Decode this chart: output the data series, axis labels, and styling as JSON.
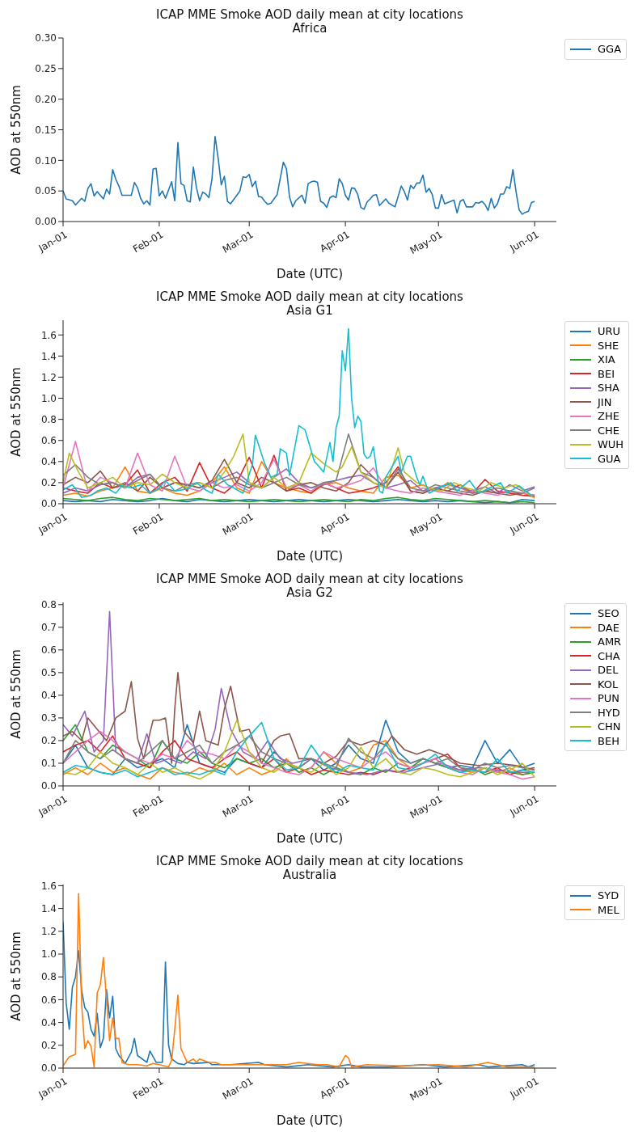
{
  "chart_data": [
    {
      "type": "line",
      "title": "ICAP MME Smoke AOD daily mean at city locations",
      "subtitle": "Africa",
      "xlabel": "Date (UTC)",
      "ylabel": "AOD at 550nm",
      "legend": "top right",
      "xlim": [
        "--01-01",
        "--06-08"
      ],
      "xticks": [
        {
          "value": "--01-01",
          "label": "Jan-01"
        },
        {
          "value": "--02-01",
          "label": "Feb-01"
        },
        {
          "value": "--03-01",
          "label": "Mar-01"
        },
        {
          "value": "--04-01",
          "label": "Apr-01"
        },
        {
          "value": "--05-01",
          "label": "May-01"
        },
        {
          "value": "--06-01",
          "label": "Jun-01"
        }
      ],
      "ylim": [
        0,
        0.3
      ],
      "yticks": [
        {
          "value": 0,
          "label": "0.00"
        },
        {
          "value": 0.05,
          "label": "0.05"
        },
        {
          "value": 0.1,
          "label": "0.10"
        },
        {
          "value": 0.15,
          "label": "0.15"
        },
        {
          "value": 0.2,
          "label": "0.20"
        },
        {
          "value": 0.25,
          "label": "0.25"
        },
        {
          "value": 0.3,
          "label": "0.30"
        }
      ],
      "series": [
        {
          "name": "GGA",
          "color": "#1f77b4",
          "x": [
            "--01-01",
            "--01-02",
            "--01-04",
            "--01-05",
            "--01-07",
            "--01-08",
            "--01-09",
            "--01-10",
            "--01-11",
            "--01-12",
            "--01-14",
            "--01-15",
            "--01-16",
            "--01-17",
            "--01-18",
            "--01-19",
            "--01-20",
            "--01-23",
            "--01-24",
            "--01-25",
            "--01-26",
            "--01-27",
            "--01-28",
            "--01-29",
            "--01-30",
            "--01-31",
            "--02-01",
            "--02-02",
            "--02-03",
            "--02-05",
            "--02-06",
            "--02-07",
            "--02-08",
            "--02-09",
            "--02-10",
            "--02-11",
            "--02-12",
            "--02-13",
            "--02-14",
            "--02-15",
            "--02-16",
            "--02-17",
            "--02-18",
            "--02-19",
            "--02-20",
            "--02-21",
            "--02-22",
            "--02-23",
            "--02-24",
            "--02-27",
            "--02-28",
            "--02-29",
            "--03-01",
            "--03-02",
            "--03-03",
            "--03-04",
            "--03-05",
            "--03-06",
            "--03-07",
            "--03-08",
            "--03-10",
            "--03-12",
            "--03-13",
            "--03-14",
            "--03-15",
            "--03-16",
            "--03-18",
            "--03-19",
            "--03-20",
            "--03-21",
            "--03-22",
            "--03-23",
            "--03-24",
            "--03-25",
            "--03-26",
            "--03-27",
            "--03-28",
            "--03-29",
            "--03-30",
            "--03-31",
            "--04-01",
            "--04-02",
            "--04-03",
            "--04-04",
            "--04-05",
            "--04-06",
            "--04-07",
            "--04-08",
            "--04-09",
            "--04-10",
            "--04-11",
            "--04-12",
            "--04-14",
            "--04-15",
            "--04-17",
            "--04-19",
            "--04-20",
            "--04-21",
            "--04-22",
            "--04-23",
            "--04-24",
            "--04-25",
            "--04-26",
            "--04-27",
            "--04-28",
            "--04-29",
            "--04-30",
            "--05-01",
            "--05-02",
            "--05-03",
            "--05-06",
            "--05-07",
            "--05-08",
            "--05-09",
            "--05-10",
            "--05-12",
            "--05-13",
            "--05-14",
            "--05-15",
            "--05-16",
            "--05-17",
            "--05-18",
            "--05-19",
            "--05-20",
            "--05-21",
            "--05-22",
            "--05-23",
            "--05-24",
            "--05-25",
            "--05-26",
            "--05-27",
            "--05-28",
            "--05-29",
            "--05-30",
            "--05-31",
            "--06-01"
          ],
          "values": [
            0.05,
            0.037,
            0.034,
            0.027,
            0.038,
            0.033,
            0.054,
            0.062,
            0.042,
            0.049,
            0.037,
            0.053,
            0.045,
            0.085,
            0.069,
            0.058,
            0.043,
            0.043,
            0.064,
            0.055,
            0.038,
            0.029,
            0.034,
            0.027,
            0.086,
            0.087,
            0.042,
            0.05,
            0.038,
            0.065,
            0.034,
            0.129,
            0.062,
            0.059,
            0.034,
            0.032,
            0.089,
            0.055,
            0.034,
            0.048,
            0.045,
            0.039,
            0.07,
            0.139,
            0.103,
            0.06,
            0.074,
            0.033,
            0.029,
            0.05,
            0.073,
            0.072,
            0.077,
            0.057,
            0.066,
            0.041,
            0.04,
            0.033,
            0.028,
            0.03,
            0.044,
            0.097,
            0.086,
            0.04,
            0.024,
            0.034,
            0.043,
            0.03,
            0.062,
            0.065,
            0.066,
            0.064,
            0.033,
            0.03,
            0.023,
            0.039,
            0.042,
            0.039,
            0.07,
            0.062,
            0.043,
            0.035,
            0.055,
            0.054,
            0.044,
            0.023,
            0.02,
            0.032,
            0.037,
            0.043,
            0.044,
            0.026,
            0.037,
            0.03,
            0.024,
            0.058,
            0.049,
            0.035,
            0.059,
            0.054,
            0.063,
            0.063,
            0.076,
            0.048,
            0.054,
            0.044,
            0.022,
            0.022,
            0.044,
            0.029,
            0.035,
            0.014,
            0.033,
            0.036,
            0.024,
            0.024,
            0.031,
            0.03,
            0.033,
            0.028,
            0.018,
            0.038,
            0.022,
            0.029,
            0.045,
            0.045,
            0.057,
            0.054,
            0.085,
            0.049,
            0.019,
            0.012,
            0.015,
            0.017,
            0.031,
            0.033
          ]
        }
      ]
    },
    {
      "type": "line",
      "title": "ICAP MME Smoke AOD daily mean at city locations",
      "subtitle": "Asia G1",
      "xlabel": "Date (UTC)",
      "ylabel": "AOD at 550nm",
      "legend": "top right",
      "xlim": [
        "--01-01",
        "--06-08"
      ],
      "xticks": [
        {
          "value": "--01-01",
          "label": "Jan-01"
        },
        {
          "value": "--02-01",
          "label": "Feb-01"
        },
        {
          "value": "--03-01",
          "label": "Mar-01"
        },
        {
          "value": "--04-01",
          "label": "Apr-01"
        },
        {
          "value": "--05-01",
          "label": "May-01"
        },
        {
          "value": "--06-01",
          "label": "Jun-01"
        }
      ],
      "ylim": [
        0,
        1.74
      ],
      "yticks": [
        {
          "value": 0,
          "label": "0.0"
        },
        {
          "value": 0.2,
          "label": "0.2"
        },
        {
          "value": 0.4,
          "label": "0.4"
        },
        {
          "value": 0.6,
          "label": "0.6"
        },
        {
          "value": 0.8,
          "label": "0.8"
        },
        {
          "value": 1,
          "label": "1.0"
        },
        {
          "value": 1.2,
          "label": "1.2"
        },
        {
          "value": 1.4,
          "label": "1.4"
        },
        {
          "value": 1.6,
          "label": "1.6"
        }
      ],
      "x": [
        "--01-01",
        "--01-05",
        "--01-09",
        "--01-13",
        "--01-17",
        "--01-21",
        "--01-25",
        "--01-29",
        "--02-02",
        "--02-06",
        "--02-10",
        "--02-14",
        "--02-18",
        "--02-22",
        "--02-26",
        "--03-01",
        "--03-05",
        "--03-09",
        "--03-13",
        "--03-17",
        "--03-21",
        "--03-25",
        "--03-29",
        "--04-02",
        "--04-06",
        "--04-10",
        "--04-14",
        "--04-18",
        "--04-22",
        "--04-26",
        "--04-30",
        "--05-04",
        "--05-08",
        "--05-12",
        "--05-16",
        "--05-20",
        "--05-24",
        "--05-28",
        "--06-01"
      ],
      "series": [
        {
          "name": "URU",
          "color": "#1f77b4",
          "values": [
            0.03,
            0.02,
            0.03,
            0.02,
            0.04,
            0.03,
            0.02,
            0.03,
            0.05,
            0.03,
            0.02,
            0.04,
            0.03,
            0.02,
            0.03,
            0.04,
            0.03,
            0.02,
            0.03,
            0.04,
            0.03,
            0.02,
            0.03,
            0.04,
            0.03,
            0.02,
            0.03,
            0.04,
            0.03,
            0.02,
            0.03,
            0.02,
            0.03,
            0.02,
            0.01,
            0.02,
            0.01,
            0.04,
            0.03
          ]
        },
        {
          "name": "SHE",
          "color": "#ff7f0e",
          "values": [
            0.08,
            0.1,
            0.07,
            0.12,
            0.15,
            0.35,
            0.12,
            0.1,
            0.15,
            0.1,
            0.08,
            0.12,
            0.2,
            0.35,
            0.15,
            0.1,
            0.4,
            0.2,
            0.15,
            0.12,
            0.1,
            0.18,
            0.2,
            0.15,
            0.12,
            0.1,
            0.25,
            0.27,
            0.15,
            0.18,
            0.12,
            0.2,
            0.15,
            0.1,
            0.12,
            0.1,
            0.12,
            0.08,
            0.07
          ]
        },
        {
          "name": "XIA",
          "color": "#2ca02c",
          "values": [
            0.05,
            0.04,
            0.03,
            0.05,
            0.06,
            0.04,
            0.03,
            0.05,
            0.04,
            0.03,
            0.04,
            0.05,
            0.03,
            0.04,
            0.03,
            0.02,
            0.03,
            0.04,
            0.03,
            0.02,
            0.03,
            0.04,
            0.03,
            0.02,
            0.04,
            0.03,
            0.05,
            0.06,
            0.04,
            0.03,
            0.05,
            0.04,
            0.03,
            0.02,
            0.03,
            0.02,
            0.01,
            0.02,
            0.01
          ]
        },
        {
          "name": "BEI",
          "color": "#d62728",
          "values": [
            0.15,
            0.12,
            0.1,
            0.2,
            0.15,
            0.18,
            0.32,
            0.1,
            0.2,
            0.25,
            0.12,
            0.39,
            0.15,
            0.1,
            0.2,
            0.44,
            0.15,
            0.46,
            0.12,
            0.15,
            0.1,
            0.2,
            0.15,
            0.1,
            0.12,
            0.15,
            0.2,
            0.35,
            0.12,
            0.1,
            0.15,
            0.12,
            0.18,
            0.1,
            0.23,
            0.12,
            0.1,
            0.08,
            0.07
          ]
        },
        {
          "name": "SHA",
          "color": "#9467bd",
          "values": [
            0.1,
            0.15,
            0.12,
            0.18,
            0.2,
            0.15,
            0.25,
            0.28,
            0.15,
            0.2,
            0.18,
            0.15,
            0.2,
            0.25,
            0.3,
            0.2,
            0.15,
            0.25,
            0.33,
            0.2,
            0.15,
            0.18,
            0.22,
            0.25,
            0.27,
            0.2,
            0.15,
            0.18,
            0.22,
            0.12,
            0.15,
            0.18,
            0.15,
            0.12,
            0.16,
            0.1,
            0.18,
            0.12,
            0.16
          ]
        },
        {
          "name": "JIN",
          "color": "#8c564b",
          "values": [
            0.18,
            0.25,
            0.2,
            0.31,
            0.15,
            0.2,
            0.12,
            0.25,
            0.15,
            0.2,
            0.18,
            0.15,
            0.22,
            0.42,
            0.2,
            0.15,
            0.25,
            0.2,
            0.12,
            0.18,
            0.2,
            0.15,
            0.12,
            0.2,
            0.37,
            0.25,
            0.15,
            0.3,
            0.12,
            0.1,
            0.15,
            0.12,
            0.1,
            0.08,
            0.12,
            0.1,
            0.08,
            0.1,
            0.08
          ]
        },
        {
          "name": "ZHE",
          "color": "#e377c2",
          "values": [
            0.15,
            0.59,
            0.12,
            0.25,
            0.2,
            0.15,
            0.48,
            0.18,
            0.12,
            0.45,
            0.15,
            0.12,
            0.2,
            0.15,
            0.18,
            0.12,
            0.2,
            0.42,
            0.15,
            0.18,
            0.12,
            0.2,
            0.15,
            0.18,
            0.22,
            0.34,
            0.15,
            0.12,
            0.1,
            0.15,
            0.12,
            0.1,
            0.08,
            0.12,
            0.1,
            0.08,
            0.12,
            0.1,
            0.08
          ]
        },
        {
          "name": "CHE",
          "color": "#7f7f7f",
          "values": [
            0.27,
            0.37,
            0.25,
            0.18,
            0.2,
            0.15,
            0.22,
            0.28,
            0.15,
            0.12,
            0.18,
            0.2,
            0.15,
            0.22,
            0.25,
            0.18,
            0.15,
            0.2,
            0.25,
            0.18,
            0.15,
            0.2,
            0.22,
            0.66,
            0.3,
            0.25,
            0.15,
            0.33,
            0.15,
            0.12,
            0.18,
            0.15,
            0.12,
            0.1,
            0.12,
            0.15,
            0.12,
            0.1,
            0.15
          ]
        },
        {
          "name": "WUH",
          "color": "#bcbd22",
          "x": [
            "--01-01",
            "--01-03",
            "--01-06",
            "--01-09",
            "--01-13",
            "--01-17",
            "--01-21",
            "--01-25",
            "--01-29",
            "--02-02",
            "--02-06",
            "--02-10",
            "--02-14",
            "--02-18",
            "--02-22",
            "--02-25",
            "--02-28",
            "--03-01",
            "--03-05",
            "--03-09",
            "--03-13",
            "--03-17",
            "--03-21",
            "--03-25",
            "--03-29",
            "--03-31",
            "--04-03",
            "--04-06",
            "--04-10",
            "--04-14",
            "--04-18",
            "--04-20",
            "--04-24",
            "--04-28",
            "--05-02",
            "--05-06",
            "--05-10",
            "--05-14",
            "--05-18",
            "--05-22",
            "--05-26",
            "--06-01"
          ],
          "values": [
            0.2,
            0.48,
            0.3,
            0.15,
            0.2,
            0.25,
            0.15,
            0.2,
            0.18,
            0.28,
            0.2,
            0.15,
            0.2,
            0.15,
            0.3,
            0.45,
            0.66,
            0.2,
            0.15,
            0.25,
            0.15,
            0.2,
            0.48,
            0.38,
            0.3,
            0.35,
            0.54,
            0.3,
            0.2,
            0.15,
            0.53,
            0.3,
            0.2,
            0.15,
            0.12,
            0.2,
            0.15,
            0.12,
            0.2,
            0.15,
            0.18,
            0.05
          ]
        },
        {
          "name": "GUA",
          "color": "#17becf",
          "x": [
            "--01-01",
            "--01-04",
            "--01-07",
            "--01-10",
            "--01-12",
            "--01-15",
            "--01-18",
            "--01-20",
            "--01-23",
            "--01-26",
            "--01-29",
            "--02-01",
            "--02-03",
            "--02-06",
            "--02-10",
            "--02-13",
            "--02-16",
            "--02-18",
            "--02-20",
            "--02-23",
            "--02-25",
            "--02-28",
            "--03-02",
            "--03-03",
            "--03-06",
            "--03-08",
            "--03-10",
            "--03-11",
            "--03-13",
            "--03-14",
            "--03-17",
            "--03-19",
            "--03-20",
            "--03-22",
            "--03-23",
            "--03-25",
            "--03-27",
            "--03-28",
            "--03-29",
            "--03-30",
            "--03-31",
            "--04-01",
            "--04-02",
            "--04-03",
            "--04-04",
            "--04-05",
            "--04-06",
            "--04-07",
            "--04-08",
            "--04-09",
            "--04-10",
            "--04-12",
            "--04-13",
            "--04-14",
            "--04-18",
            "--04-19",
            "--04-21",
            "--04-22",
            "--04-24",
            "--04-25",
            "--04-26",
            "--04-28",
            "--05-01",
            "--05-05",
            "--05-07",
            "--05-11",
            "--05-14",
            "--05-21",
            "--05-23",
            "--05-27",
            "--05-31"
          ],
          "values": [
            0.13,
            0.18,
            0.06,
            0.08,
            0.12,
            0.15,
            0.1,
            0.17,
            0.15,
            0.18,
            0.1,
            0.15,
            0.22,
            0.12,
            0.14,
            0.2,
            0.13,
            0.1,
            0.28,
            0.18,
            0.15,
            0.1,
            0.37,
            0.65,
            0.38,
            0.25,
            0.28,
            0.52,
            0.48,
            0.27,
            0.74,
            0.7,
            0.6,
            0.4,
            0.37,
            0.3,
            0.58,
            0.4,
            0.72,
            0.83,
            1.45,
            1.26,
            1.66,
            1.0,
            0.72,
            0.83,
            0.78,
            0.47,
            0.43,
            0.45,
            0.54,
            0.12,
            0.1,
            0.25,
            0.45,
            0.3,
            0.45,
            0.45,
            0.25,
            0.18,
            0.26,
            0.1,
            0.15,
            0.2,
            0.12,
            0.22,
            0.1,
            0.2,
            0.1,
            0.17,
            0.08
          ]
        }
      ]
    },
    {
      "type": "line",
      "title": "ICAP MME Smoke AOD daily mean at city locations",
      "subtitle": "Asia G2",
      "xlabel": "Date (UTC)",
      "ylabel": "AOD at 550nm",
      "legend": "top right",
      "xlim": [
        "--01-01",
        "--06-08"
      ],
      "xticks": [
        {
          "value": "--01-01",
          "label": "Jan-01"
        },
        {
          "value": "--02-01",
          "label": "Feb-01"
        },
        {
          "value": "--03-01",
          "label": "Mar-01"
        },
        {
          "value": "--04-01",
          "label": "Apr-01"
        },
        {
          "value": "--05-01",
          "label": "May-01"
        },
        {
          "value": "--06-01",
          "label": "Jun-01"
        }
      ],
      "ylim": [
        0,
        0.81
      ],
      "yticks": [
        {
          "value": 0,
          "label": "0.0"
        },
        {
          "value": 0.1,
          "label": "0.1"
        },
        {
          "value": 0.2,
          "label": "0.2"
        },
        {
          "value": 0.3,
          "label": "0.3"
        },
        {
          "value": 0.4,
          "label": "0.4"
        },
        {
          "value": 0.5,
          "label": "0.5"
        },
        {
          "value": 0.6,
          "label": "0.6"
        },
        {
          "value": 0.7,
          "label": "0.7"
        },
        {
          "value": 0.8,
          "label": "0.8"
        }
      ],
      "x": [
        "--01-01",
        "--01-05",
        "--01-09",
        "--01-13",
        "--01-17",
        "--01-21",
        "--01-25",
        "--01-29",
        "--02-02",
        "--02-06",
        "--02-10",
        "--02-14",
        "--02-18",
        "--02-22",
        "--02-26",
        "--03-01",
        "--03-05",
        "--03-09",
        "--03-13",
        "--03-17",
        "--03-21",
        "--03-25",
        "--03-29",
        "--04-02",
        "--04-06",
        "--04-10",
        "--04-14",
        "--04-18",
        "--04-22",
        "--04-26",
        "--04-30",
        "--05-04",
        "--05-08",
        "--05-12",
        "--05-16",
        "--05-20",
        "--05-24",
        "--05-28",
        "--06-01"
      ],
      "series": [
        {
          "name": "SEO",
          "color": "#1f77b4",
          "values": [
            0.1,
            0.18,
            0.08,
            0.06,
            0.05,
            0.12,
            0.08,
            0.1,
            0.12,
            0.08,
            0.27,
            0.1,
            0.08,
            0.06,
            0.12,
            0.1,
            0.08,
            0.15,
            0.1,
            0.08,
            0.12,
            0.07,
            0.1,
            0.18,
            0.12,
            0.1,
            0.29,
            0.15,
            0.1,
            0.12,
            0.1,
            0.08,
            0.09,
            0.08,
            0.2,
            0.1,
            0.16,
            0.08,
            0.1
          ]
        },
        {
          "name": "DAE",
          "color": "#ff7f0e",
          "values": [
            0.05,
            0.08,
            0.05,
            0.1,
            0.06,
            0.08,
            0.05,
            0.03,
            0.08,
            0.06,
            0.05,
            0.08,
            0.06,
            0.1,
            0.05,
            0.08,
            0.05,
            0.07,
            0.12,
            0.06,
            0.08,
            0.15,
            0.1,
            0.06,
            0.08,
            0.18,
            0.2,
            0.12,
            0.08,
            0.1,
            0.12,
            0.08,
            0.07,
            0.06,
            0.08,
            0.06,
            0.08,
            0.05,
            0.06
          ]
        },
        {
          "name": "AMR",
          "color": "#2ca02c",
          "values": [
            0.2,
            0.27,
            0.15,
            0.12,
            0.18,
            0.15,
            0.12,
            0.08,
            0.2,
            0.12,
            0.1,
            0.15,
            0.1,
            0.08,
            0.12,
            0.1,
            0.12,
            0.08,
            0.1,
            0.06,
            0.08,
            0.05,
            0.08,
            0.06,
            0.05,
            0.08,
            0.06,
            0.1,
            0.08,
            0.12,
            0.1,
            0.08,
            0.06,
            0.08,
            0.05,
            0.07,
            0.06,
            0.05,
            0.06
          ]
        },
        {
          "name": "CHA",
          "color": "#d62728",
          "values": [
            0.15,
            0.18,
            0.2,
            0.15,
            0.22,
            0.12,
            0.1,
            0.08,
            0.15,
            0.2,
            0.12,
            0.1,
            0.08,
            0.12,
            0.15,
            0.1,
            0.08,
            0.12,
            0.06,
            0.08,
            0.05,
            0.07,
            0.06,
            0.05,
            0.06,
            0.05,
            0.07,
            0.06,
            0.08,
            0.1,
            0.12,
            0.14,
            0.08,
            0.07,
            0.06,
            0.08,
            0.05,
            0.07,
            0.08
          ]
        },
        {
          "name": "DEL",
          "color": "#9467bd",
          "x": [
            "--01-01",
            "--01-04",
            "--01-08",
            "--01-11",
            "--01-14",
            "--01-16",
            "--01-18",
            "--01-21",
            "--01-25",
            "--01-28",
            "--01-31",
            "--02-04",
            "--02-08",
            "--02-12",
            "--02-16",
            "--02-19",
            "--02-21",
            "--02-24",
            "--02-28",
            "--03-03",
            "--03-07",
            "--03-11",
            "--03-15",
            "--03-21",
            "--03-27",
            "--04-02",
            "--04-08",
            "--04-14",
            "--04-20",
            "--04-26",
            "--05-02",
            "--05-08",
            "--05-14",
            "--05-20",
            "--05-26",
            "--06-01"
          ],
          "values": [
            0.27,
            0.22,
            0.33,
            0.15,
            0.2,
            0.77,
            0.15,
            0.12,
            0.1,
            0.23,
            0.1,
            0.12,
            0.1,
            0.15,
            0.12,
            0.25,
            0.43,
            0.25,
            0.15,
            0.12,
            0.2,
            0.12,
            0.1,
            0.12,
            0.08,
            0.06,
            0.05,
            0.07,
            0.06,
            0.08,
            0.1,
            0.07,
            0.08,
            0.07,
            0.06,
            0.06
          ]
        },
        {
          "name": "KOL",
          "color": "#8c564b",
          "x": [
            "--01-01",
            "--01-04",
            "--01-07",
            "--01-09",
            "--01-12",
            "--01-15",
            "--01-18",
            "--01-21",
            "--01-23",
            "--01-25",
            "--01-27",
            "--01-30",
            "--02-01",
            "--02-03",
            "--02-05",
            "--02-06",
            "--02-07",
            "--02-09",
            "--02-12",
            "--02-14",
            "--02-16",
            "--02-20",
            "--02-22",
            "--02-24",
            "--02-27",
            "--03-01",
            "--03-05",
            "--03-09",
            "--03-11",
            "--03-14",
            "--03-17",
            "--03-21",
            "--03-25",
            "--03-29",
            "--04-02",
            "--04-06",
            "--04-10",
            "--04-14",
            "--04-16",
            "--04-20",
            "--04-24",
            "--04-28",
            "--05-02",
            "--05-08",
            "--05-14",
            "--05-20",
            "--05-26",
            "--06-01"
          ],
          "values": [
            0.22,
            0.24,
            0.2,
            0.3,
            0.25,
            0.2,
            0.3,
            0.33,
            0.46,
            0.21,
            0.12,
            0.29,
            0.29,
            0.3,
            0.1,
            0.34,
            0.5,
            0.24,
            0.19,
            0.33,
            0.2,
            0.18,
            0.34,
            0.44,
            0.24,
            0.25,
            0.1,
            0.2,
            0.22,
            0.23,
            0.12,
            0.12,
            0.1,
            0.13,
            0.2,
            0.18,
            0.2,
            0.18,
            0.22,
            0.16,
            0.14,
            0.16,
            0.14,
            0.1,
            0.09,
            0.1,
            0.09,
            0.07
          ]
        },
        {
          "name": "PUN",
          "color": "#e377c2",
          "values": [
            0.1,
            0.15,
            0.2,
            0.24,
            0.2,
            0.15,
            0.12,
            0.1,
            0.14,
            0.12,
            0.2,
            0.15,
            0.14,
            0.12,
            0.18,
            0.15,
            0.1,
            0.08,
            0.06,
            0.05,
            0.08,
            0.15,
            0.12,
            0.1,
            0.08,
            0.12,
            0.15,
            0.1,
            0.08,
            0.1,
            0.12,
            0.08,
            0.06,
            0.05,
            0.08,
            0.06,
            0.05,
            0.03,
            0.04
          ]
        },
        {
          "name": "HYD",
          "color": "#7f7f7f",
          "values": [
            0.1,
            0.2,
            0.15,
            0.12,
            0.16,
            0.12,
            0.1,
            0.15,
            0.2,
            0.12,
            0.15,
            0.18,
            0.1,
            0.15,
            0.18,
            0.22,
            0.15,
            0.12,
            0.1,
            0.08,
            0.12,
            0.1,
            0.08,
            0.21,
            0.15,
            0.12,
            0.18,
            0.12,
            0.1,
            0.12,
            0.1,
            0.12,
            0.08,
            0.07,
            0.1,
            0.08,
            0.09,
            0.08,
            0.07
          ]
        },
        {
          "name": "CHN",
          "color": "#bcbd22",
          "values": [
            0.06,
            0.05,
            0.08,
            0.15,
            0.1,
            0.08,
            0.05,
            0.1,
            0.06,
            0.08,
            0.05,
            0.03,
            0.06,
            0.15,
            0.29,
            0.15,
            0.08,
            0.06,
            0.1,
            0.08,
            0.06,
            0.1,
            0.05,
            0.08,
            0.17,
            0.08,
            0.12,
            0.06,
            0.05,
            0.08,
            0.07,
            0.05,
            0.04,
            0.06,
            0.08,
            0.05,
            0.07,
            0.1,
            0.04
          ]
        },
        {
          "name": "BEH",
          "color": "#17becf",
          "values": [
            0.06,
            0.09,
            0.08,
            0.06,
            0.05,
            0.07,
            0.04,
            0.06,
            0.08,
            0.05,
            0.06,
            0.05,
            0.07,
            0.05,
            0.15,
            0.22,
            0.28,
            0.12,
            0.07,
            0.08,
            0.18,
            0.1,
            0.06,
            0.09,
            0.08,
            0.07,
            0.19,
            0.08,
            0.07,
            0.1,
            0.14,
            0.08,
            0.06,
            0.07,
            0.06,
            0.12,
            0.06,
            0.07,
            0.06
          ]
        }
      ]
    },
    {
      "type": "line",
      "title": "ICAP MME Smoke AOD daily mean at city locations",
      "subtitle": "Australia",
      "xlabel": "Date (UTC)",
      "ylabel": "AOD at 550nm",
      "legend": "top right",
      "xlim": [
        "--01-01",
        "--06-08"
      ],
      "xticks": [
        {
          "value": "--01-01",
          "label": "Jan-01"
        },
        {
          "value": "--02-01",
          "label": "Feb-01"
        },
        {
          "value": "--03-01",
          "label": "Mar-01"
        },
        {
          "value": "--04-01",
          "label": "Apr-01"
        },
        {
          "value": "--05-01",
          "label": "May-01"
        },
        {
          "value": "--06-01",
          "label": "Jun-01"
        }
      ],
      "ylim": [
        0,
        1.61
      ],
      "yticks": [
        {
          "value": 0,
          "label": "0.0"
        },
        {
          "value": 0.2,
          "label": "0.2"
        },
        {
          "value": 0.4,
          "label": "0.4"
        },
        {
          "value": 0.6,
          "label": "0.6"
        },
        {
          "value": 0.8,
          "label": "0.8"
        },
        {
          "value": 1,
          "label": "1.0"
        },
        {
          "value": 1.2,
          "label": "1.2"
        },
        {
          "value": 1.4,
          "label": "1.4"
        },
        {
          "value": 1.6,
          "label": "1.6"
        }
      ],
      "series": [
        {
          "name": "SYD",
          "color": "#1f77b4",
          "x": [
            "--01-01",
            "--01-02",
            "--01-03",
            "--01-04",
            "--01-05",
            "--01-06",
            "--01-07",
            "--01-08",
            "--01-09",
            "--01-10",
            "--01-11",
            "--01-12",
            "--01-13",
            "--01-14",
            "--01-15",
            "--01-16",
            "--01-17",
            "--01-18",
            "--01-19",
            "--01-21",
            "--01-23",
            "--01-24",
            "--01-25",
            "--01-28",
            "--01-29",
            "--01-31",
            "--02-02",
            "--02-03",
            "--02-04",
            "--02-05",
            "--02-07",
            "--02-09",
            "--02-10",
            "--02-12",
            "--02-17",
            "--02-18",
            "--02-24",
            "--03-04",
            "--03-06",
            "--03-13",
            "--03-20",
            "--03-28",
            "--04-02",
            "--04-06",
            "--04-15",
            "--04-26",
            "--05-03",
            "--05-14",
            "--05-17",
            "--05-28",
            "--05-30",
            "--06-01"
          ],
          "values": [
            1.28,
            0.57,
            0.34,
            0.71,
            0.8,
            1.03,
            0.68,
            0.53,
            0.49,
            0.34,
            0.28,
            0.48,
            0.18,
            0.26,
            0.69,
            0.44,
            0.63,
            0.17,
            0.11,
            0.04,
            0.14,
            0.26,
            0.11,
            0.05,
            0.15,
            0.05,
            0.05,
            0.93,
            0.2,
            0.08,
            0.04,
            0.03,
            0.05,
            0.04,
            0.05,
            0.03,
            0.03,
            0.05,
            0.03,
            0.01,
            0.03,
            0.01,
            0.03,
            0.01,
            0.01,
            0.03,
            0.01,
            0.03,
            0.01,
            0.03,
            0.01,
            0.03
          ]
        },
        {
          "name": "MEL",
          "color": "#ff7f0e",
          "x": [
            "--01-01",
            "--01-03",
            "--01-05",
            "--01-06",
            "--01-07",
            "--01-08",
            "--01-09",
            "--01-10",
            "--01-11",
            "--01-12",
            "--01-13",
            "--01-14",
            "--01-15",
            "--01-16",
            "--01-17",
            "--01-18",
            "--01-19",
            "--01-20",
            "--01-22",
            "--01-25",
            "--01-28",
            "--01-30",
            "--02-01",
            "--02-04",
            "--02-05",
            "--02-06",
            "--02-07",
            "--02-08",
            "--02-10",
            "--02-12",
            "--02-13",
            "--02-14",
            "--02-17",
            "--02-19",
            "--02-21",
            "--02-29",
            "--03-06",
            "--03-13",
            "--03-17",
            "--03-23",
            "--03-26",
            "--03-30",
            "--04-01",
            "--04-02",
            "--04-03",
            "--04-08",
            "--04-19",
            "--05-01",
            "--05-10",
            "--05-17",
            "--05-23",
            "--06-01"
          ],
          "values": [
            0.02,
            0.1,
            0.12,
            1.53,
            0.55,
            0.17,
            0.24,
            0.19,
            0.01,
            0.66,
            0.73,
            0.97,
            0.6,
            0.24,
            0.44,
            0.26,
            0.26,
            0.05,
            0.03,
            0.03,
            0.02,
            0.04,
            0.03,
            0.01,
            0.07,
            0.34,
            0.64,
            0.17,
            0.05,
            0.08,
            0.05,
            0.08,
            0.05,
            0.05,
            0.03,
            0.03,
            0.03,
            0.03,
            0.05,
            0.03,
            0.03,
            0.01,
            0.11,
            0.09,
            0.01,
            0.03,
            0.02,
            0.03,
            0.01,
            0.05,
            0.01,
            0.01
          ]
        }
      ]
    }
  ]
}
